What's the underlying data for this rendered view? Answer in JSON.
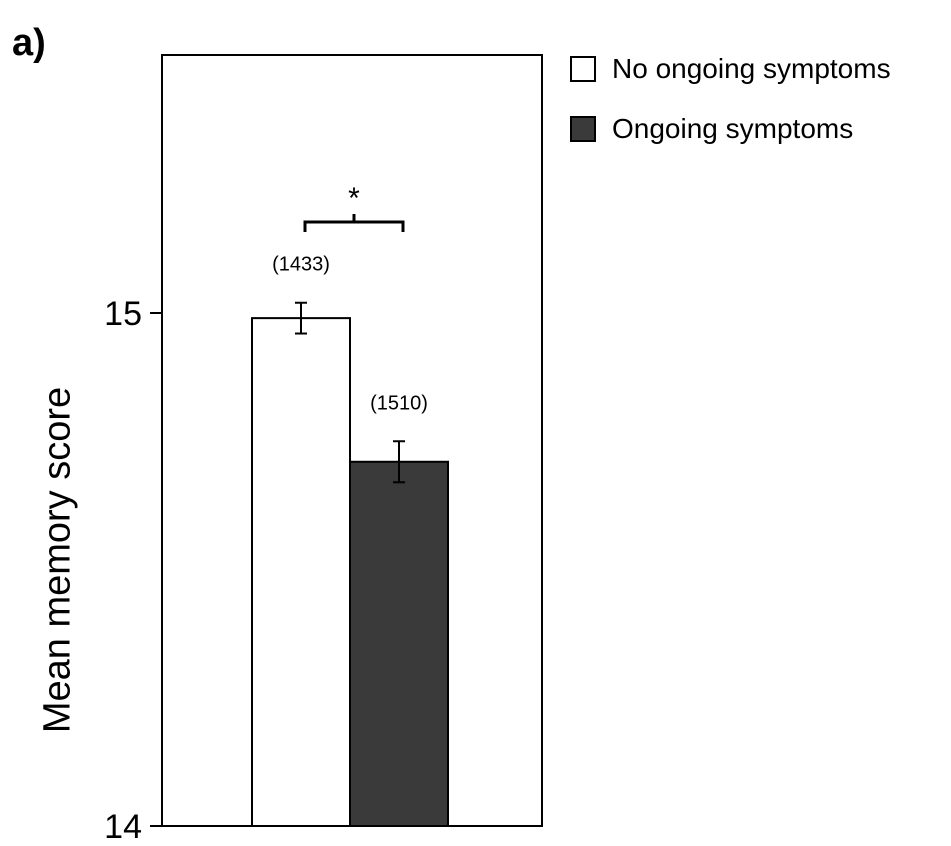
{
  "panel_label": "a)",
  "chart_data": {
    "type": "bar",
    "title": "",
    "xlabel": "",
    "ylabel": "Mean memory score",
    "ylim": [
      14,
      15.6
    ],
    "yticks": [
      14,
      15
    ],
    "grid": false,
    "legend_position": "top-right",
    "series": [
      {
        "name": "No ongoing symptoms",
        "value": 14.99,
        "error": 0.03,
        "n_label": "(1433)",
        "color": "#ffffff"
      },
      {
        "name": "Ongoing symptoms",
        "value": 14.71,
        "error": 0.04,
        "n_label": "(1510)",
        "color": "#3a3a3a"
      }
    ],
    "annotations": [
      {
        "text": "*",
        "type": "significance-bracket"
      }
    ]
  }
}
